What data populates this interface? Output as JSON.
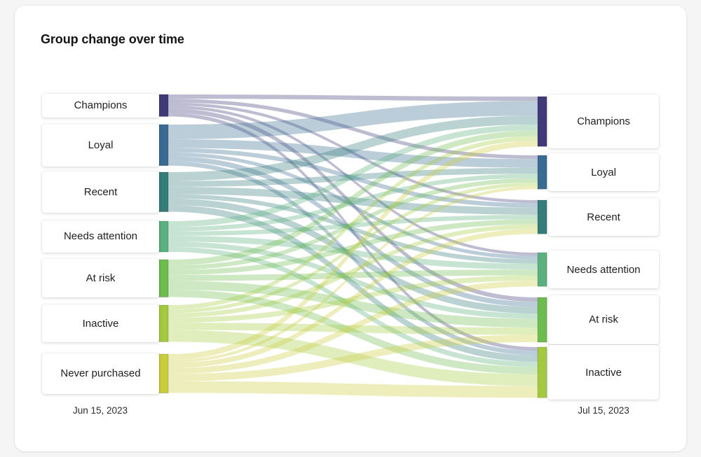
{
  "title": "Group change over time",
  "axis": {
    "left_date": "Jun 15, 2023",
    "right_date": "Jul 15, 2023"
  },
  "chart_data": {
    "type": "sankey",
    "title": "Group change over time",
    "columns": [
      {
        "date": "Jun 15, 2023",
        "nodes": [
          "Champions",
          "Loyal",
          "Recent",
          "Needs attention",
          "At risk",
          "Inactive",
          "Never purchased"
        ]
      },
      {
        "date": "Jul 15, 2023",
        "nodes": [
          "Champions",
          "Loyal",
          "Recent",
          "Needs attention",
          "At risk",
          "Inactive"
        ]
      }
    ],
    "segment_colors": {
      "Champions": "#403a78",
      "Loyal": "#3a6b92",
      "Recent": "#357d7b",
      "Needs attention": "#5ab07e",
      "At risk": "#6cbd4d",
      "Inactive": "#a3ca3f",
      "Never purchased": "#c9cd3a"
    },
    "links": [
      {
        "source": "Champions",
        "target": "Champions",
        "value": 6
      },
      {
        "source": "Champions",
        "target": "Loyal",
        "value": 5
      },
      {
        "source": "Champions",
        "target": "Recent",
        "value": 4
      },
      {
        "source": "Champions",
        "target": "Needs attention",
        "value": 4
      },
      {
        "source": "Champions",
        "target": "At risk",
        "value": 6
      },
      {
        "source": "Champions",
        "target": "Inactive",
        "value": 5
      },
      {
        "source": "Loyal",
        "target": "Champions",
        "value": 20
      },
      {
        "source": "Loyal",
        "target": "Loyal",
        "value": 12
      },
      {
        "source": "Loyal",
        "target": "Recent",
        "value": 6
      },
      {
        "source": "Loyal",
        "target": "Needs attention",
        "value": 5
      },
      {
        "source": "Loyal",
        "target": "At risk",
        "value": 7
      },
      {
        "source": "Loyal",
        "target": "Inactive",
        "value": 6
      },
      {
        "source": "Recent",
        "target": "Champions",
        "value": 12
      },
      {
        "source": "Recent",
        "target": "Loyal",
        "value": 8
      },
      {
        "source": "Recent",
        "target": "Recent",
        "value": 10
      },
      {
        "source": "Recent",
        "target": "Needs attention",
        "value": 6
      },
      {
        "source": "Recent",
        "target": "At risk",
        "value": 9
      },
      {
        "source": "Recent",
        "target": "Inactive",
        "value": 9
      },
      {
        "source": "Needs attention",
        "target": "Champions",
        "value": 8
      },
      {
        "source": "Needs attention",
        "target": "Loyal",
        "value": 6
      },
      {
        "source": "Needs attention",
        "target": "Recent",
        "value": 6
      },
      {
        "source": "Needs attention",
        "target": "Needs attention",
        "value": 8
      },
      {
        "source": "Needs attention",
        "target": "At risk",
        "value": 7
      },
      {
        "source": "Needs attention",
        "target": "Inactive",
        "value": 7
      },
      {
        "source": "At risk",
        "target": "Champions",
        "value": 8
      },
      {
        "source": "At risk",
        "target": "Loyal",
        "value": 6
      },
      {
        "source": "At risk",
        "target": "Recent",
        "value": 7
      },
      {
        "source": "At risk",
        "target": "Needs attention",
        "value": 8
      },
      {
        "source": "At risk",
        "target": "At risk",
        "value": 12
      },
      {
        "source": "At risk",
        "target": "Inactive",
        "value": 10
      },
      {
        "source": "Inactive",
        "target": "Champions",
        "value": 6
      },
      {
        "source": "Inactive",
        "target": "Loyal",
        "value": 5
      },
      {
        "source": "Inactive",
        "target": "Recent",
        "value": 6
      },
      {
        "source": "Inactive",
        "target": "Needs attention",
        "value": 7
      },
      {
        "source": "Inactive",
        "target": "At risk",
        "value": 10
      },
      {
        "source": "Inactive",
        "target": "Inactive",
        "value": 16
      },
      {
        "source": "Never purchased",
        "target": "Champions",
        "value": 8
      },
      {
        "source": "Never purchased",
        "target": "Loyal",
        "value": 4
      },
      {
        "source": "Never purchased",
        "target": "Recent",
        "value": 7
      },
      {
        "source": "Never purchased",
        "target": "Needs attention",
        "value": 8
      },
      {
        "source": "Never purchased",
        "target": "At risk",
        "value": 10
      },
      {
        "source": "Never purchased",
        "target": "Inactive",
        "value": 16
      }
    ]
  }
}
